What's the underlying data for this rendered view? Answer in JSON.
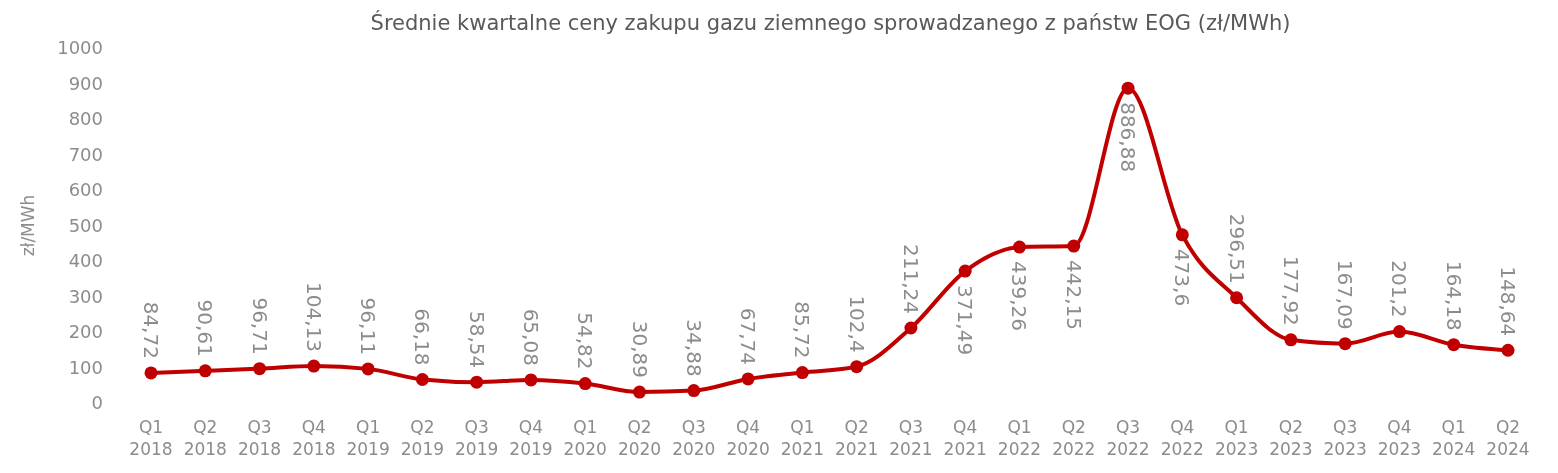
{
  "chart_data": {
    "type": "line",
    "title": "Średnie kwartalne ceny zakupu gazu ziemnego sprowadzanego z państw EOG (zł/MWh)",
    "ylabel": "zł/MWh",
    "categories": [
      "Q1 2018",
      "Q2 2018",
      "Q3 2018",
      "Q4 2018",
      "Q1 2019",
      "Q2 2019",
      "Q3 2019",
      "Q4 2019",
      "Q1 2020",
      "Q2 2020",
      "Q3 2020",
      "Q4 2020",
      "Q1 2021",
      "Q2 2021",
      "Q3 2021",
      "Q4 2021",
      "Q1 2022",
      "Q2 2022",
      "Q3 2022",
      "Q4 2022",
      "Q1 2023",
      "Q2 2023",
      "Q3 2023",
      "Q4 2023",
      "Q1 2024",
      "Q2 2024"
    ],
    "series": [
      {
        "color": "#c00000",
        "values": [
          84.72,
          90.61,
          96.71,
          104.13,
          96.11,
          66.18,
          58.54,
          65.08,
          54.82,
          30.89,
          34.88,
          67.74,
          85.72,
          102.4,
          211.24,
          371.49,
          439.26,
          442.15,
          886.88,
          473.6,
          296.51,
          177.92,
          167.09,
          201.2,
          164.18,
          148.64
        ],
        "value_labels": [
          "84,72",
          "90,61",
          "96,71",
          "104,13",
          "96,11",
          "66,18",
          "58,54",
          "65,08",
          "54,82",
          "30,89",
          "34,88",
          "67,74",
          "85,72",
          "102,4",
          "211,24",
          "371,49",
          "439,26",
          "442,15",
          "886,88",
          "473,6",
          "296,51",
          "177,92",
          "167,09",
          "201,2",
          "164,18",
          "148,64"
        ]
      }
    ],
    "ylim": [
      0,
      1000
    ],
    "yticks": [
      0,
      100,
      200,
      300,
      400,
      500,
      600,
      700,
      800,
      900,
      1000
    ],
    "grid": false,
    "marker": "circle",
    "line_style": "solid"
  }
}
